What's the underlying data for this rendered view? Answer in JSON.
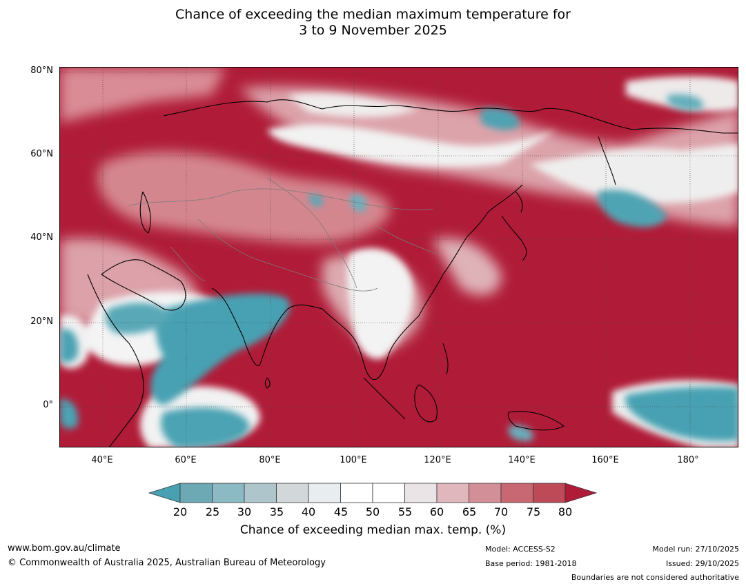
{
  "header": {
    "title_line1": "Chance of exceeding the median maximum temperature for",
    "title_line2": "3 to 9 November 2025"
  },
  "map": {
    "latitude_labels": [
      "80°N",
      "60°N",
      "40°N",
      "20°N",
      "0°"
    ],
    "longitude_labels": [
      "40°E",
      "60°E",
      "80°E",
      "100°E",
      "120°E",
      "140°E",
      "160°E",
      "180°"
    ],
    "region": "Asia",
    "colors": {
      "above_80": "#b01c38",
      "below_20": "#47a1b2",
      "land_outline": "#000000",
      "boundary": "#7a7a7a"
    }
  },
  "colorbar": {
    "ticks": [
      "20",
      "25",
      "30",
      "35",
      "40",
      "45",
      "50",
      "55",
      "60",
      "65",
      "70",
      "75",
      "80"
    ],
    "colors": [
      "#47a1b2",
      "#6da9b5",
      "#8bb9c4",
      "#aec6cb",
      "#d2d8da",
      "#e8eef0",
      "#ffffff",
      "#ffffff",
      "#ebe4e6",
      "#e0b7bd",
      "#d28f98",
      "#c76873",
      "#bd4a56",
      "#b01c38"
    ],
    "label": "Chance of exceeding median max. temp. (%)"
  },
  "footer": {
    "website": "www.bom.gov.au/climate",
    "copyright": "© Commonwealth of Australia 2025, Australian Bureau of Meteorology",
    "model": "Model: ACCESS-S2",
    "base_period": "Base period: 1981-2018",
    "model_run": "Model run: 27/10/2025",
    "issued": "Issued: 29/10/2025",
    "disclaimer": "Boundaries are not considered authoritative"
  }
}
